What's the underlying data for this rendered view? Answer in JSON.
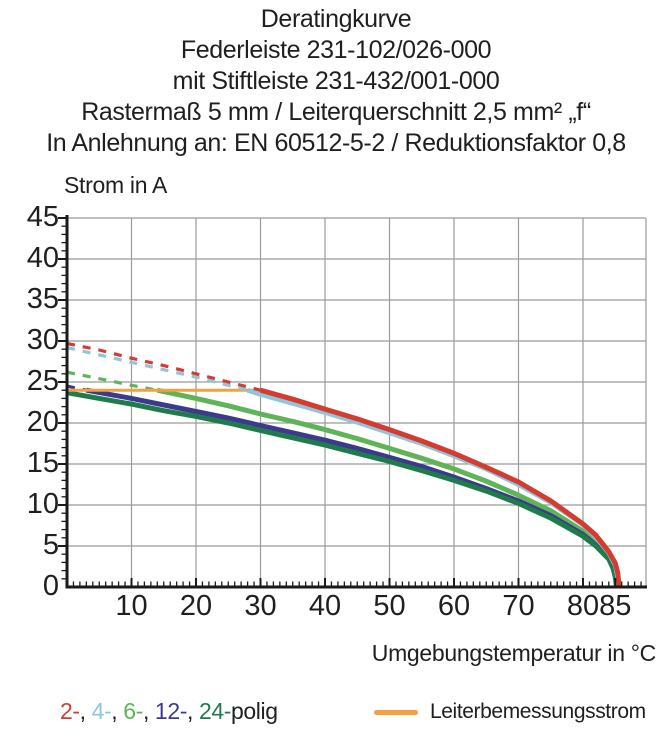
{
  "title_lines": [
    "Deratingkurve",
    "Federleiste 231-102/026-000",
    "mit Stiftleiste 231-432/001-000",
    "Rastermaß 5 mm / Leiterquerschnitt 2,5 mm² „f“",
    "In Anlehnung an: EN 60512-5-2 / Reduktionsfaktor 0,8"
  ],
  "chart_data": {
    "type": "line",
    "title": "Deratingkurve",
    "xlabel": "Umgebungstemperatur in °C",
    "ylabel": "Strom in A",
    "xlim": [
      0,
      90
    ],
    "ylim": [
      0,
      45
    ],
    "xticks": [
      10,
      20,
      30,
      40,
      50,
      60,
      70,
      80,
      85
    ],
    "yticks": [
      0,
      5,
      10,
      15,
      20,
      25,
      30,
      35,
      40,
      45
    ],
    "grid": {
      "color": "#9b9b9b",
      "x_lines_every": 10,
      "y_lines_every": 5
    },
    "line_style_note": "dashed above rated conductor current (24 A), solid below",
    "series": [
      {
        "name": "2-polig",
        "color": "#d63b2f",
        "solid_from": 30,
        "points": [
          [
            0,
            29.7
          ],
          [
            5,
            28.9
          ],
          [
            10,
            27.9
          ],
          [
            15,
            27.0
          ],
          [
            20,
            26.0
          ],
          [
            25,
            25.0
          ],
          [
            30,
            24.0
          ],
          [
            35,
            22.9
          ],
          [
            40,
            21.7
          ],
          [
            45,
            20.5
          ],
          [
            50,
            19.2
          ],
          [
            55,
            17.8
          ],
          [
            60,
            16.3
          ],
          [
            65,
            14.6
          ],
          [
            70,
            12.8
          ],
          [
            75,
            10.5
          ],
          [
            80,
            7.7
          ],
          [
            82,
            6.3
          ],
          [
            84,
            4.3
          ],
          [
            85,
            2.9
          ],
          [
            85.4,
            1.7
          ],
          [
            85.6,
            0
          ]
        ]
      },
      {
        "name": "4-polig",
        "color": "#8ec6dc",
        "solid_from": 28,
        "points": [
          [
            0,
            29.2
          ],
          [
            5,
            28.3
          ],
          [
            10,
            27.4
          ],
          [
            15,
            26.5
          ],
          [
            20,
            25.6
          ],
          [
            25,
            24.6
          ],
          [
            28,
            24.0
          ],
          [
            30,
            23.5
          ],
          [
            35,
            22.4
          ],
          [
            40,
            21.3
          ],
          [
            45,
            20.1
          ],
          [
            50,
            18.8
          ],
          [
            55,
            17.5
          ],
          [
            60,
            16.0
          ],
          [
            65,
            14.4
          ],
          [
            70,
            12.5
          ],
          [
            75,
            10.3
          ],
          [
            80,
            7.6
          ],
          [
            82,
            6.1
          ],
          [
            84,
            4.2
          ],
          [
            85,
            2.7
          ],
          [
            85.3,
            1.6
          ],
          [
            85.5,
            0
          ]
        ]
      },
      {
        "name": "6-polig",
        "color": "#5eb457",
        "solid_from": 14,
        "points": [
          [
            0,
            26.2
          ],
          [
            5,
            25.4
          ],
          [
            10,
            24.6
          ],
          [
            14,
            24.0
          ],
          [
            20,
            23.0
          ],
          [
            25,
            22.1
          ],
          [
            30,
            21.1
          ],
          [
            35,
            20.2
          ],
          [
            40,
            19.2
          ],
          [
            45,
            18.1
          ],
          [
            50,
            16.9
          ],
          [
            55,
            15.7
          ],
          [
            60,
            14.4
          ],
          [
            65,
            12.9
          ],
          [
            70,
            11.2
          ],
          [
            75,
            9.3
          ],
          [
            80,
            6.8
          ],
          [
            82,
            5.5
          ],
          [
            84,
            3.8
          ],
          [
            84.8,
            2.5
          ],
          [
            85.1,
            1.4
          ],
          [
            85.35,
            0
          ]
        ]
      },
      {
        "name": "12-polig",
        "color": "#3b3b8e",
        "solid_from": 3,
        "points": [
          [
            0,
            24.5
          ],
          [
            3,
            24.0
          ],
          [
            10,
            23.0
          ],
          [
            15,
            22.2
          ],
          [
            20,
            21.4
          ],
          [
            25,
            20.6
          ],
          [
            30,
            19.7
          ],
          [
            35,
            18.8
          ],
          [
            40,
            17.9
          ],
          [
            45,
            16.9
          ],
          [
            50,
            15.8
          ],
          [
            55,
            14.7
          ],
          [
            60,
            13.4
          ],
          [
            65,
            12.0
          ],
          [
            70,
            10.5
          ],
          [
            75,
            8.7
          ],
          [
            80,
            6.4
          ],
          [
            82,
            5.1
          ],
          [
            84,
            3.6
          ],
          [
            84.8,
            2.3
          ],
          [
            85.1,
            1.3
          ],
          [
            85.3,
            0
          ]
        ]
      },
      {
        "name": "24-polig",
        "color": "#1f7b4a",
        "solid_from": 0,
        "points": [
          [
            0,
            23.7
          ],
          [
            5,
            23.0
          ],
          [
            10,
            22.3
          ],
          [
            15,
            21.5
          ],
          [
            20,
            20.8
          ],
          [
            25,
            20.0
          ],
          [
            30,
            19.1
          ],
          [
            35,
            18.2
          ],
          [
            40,
            17.3
          ],
          [
            45,
            16.3
          ],
          [
            50,
            15.3
          ],
          [
            55,
            14.2
          ],
          [
            60,
            13.0
          ],
          [
            65,
            11.7
          ],
          [
            70,
            10.2
          ],
          [
            75,
            8.4
          ],
          [
            80,
            6.2
          ],
          [
            82,
            5.0
          ],
          [
            84,
            3.4
          ],
          [
            84.7,
            2.2
          ],
          [
            85,
            1.2
          ],
          [
            85.2,
            0
          ]
        ]
      }
    ],
    "rated_line": {
      "name": "Leiterbemessungsstrom",
      "color": "#f2a042",
      "value": 24,
      "x_start": 0,
      "x_end": 29.5
    }
  },
  "legend": {
    "poles": {
      "parts": [
        {
          "text": "2-",
          "color": "#d63b2f"
        },
        {
          "text": ", ",
          "color": "#222222"
        },
        {
          "text": "4-",
          "color": "#8ec6dc"
        },
        {
          "text": ", ",
          "color": "#222222"
        },
        {
          "text": "6-",
          "color": "#5eb457"
        },
        {
          "text": ", ",
          "color": "#222222"
        },
        {
          "text": "12-",
          "color": "#3b3b8e"
        },
        {
          "text": ", ",
          "color": "#222222"
        },
        {
          "text": "24-",
          "color": "#1f7b4a"
        },
        {
          "text": "polig",
          "color": "#222222"
        }
      ]
    },
    "rated": {
      "label": "Leiterbemessungsstrom",
      "color": "#f2a042"
    }
  }
}
